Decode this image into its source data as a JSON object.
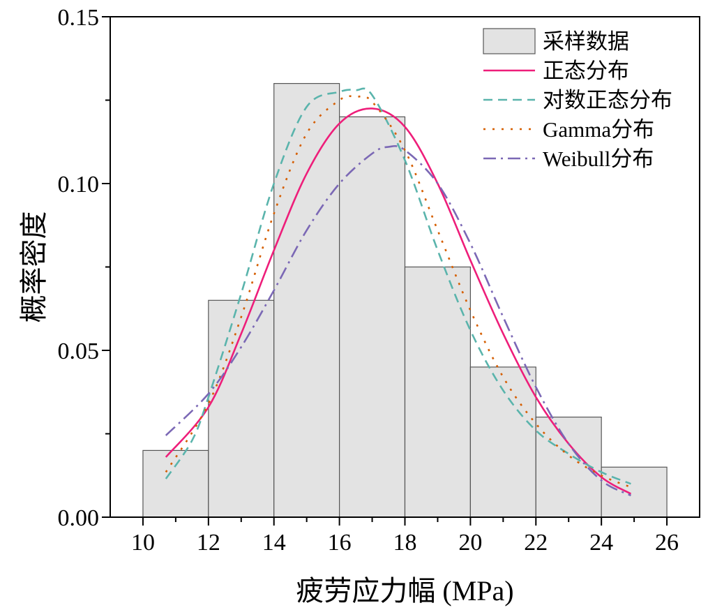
{
  "chart_data": {
    "type": "bar",
    "title": "",
    "xlabel": "疲劳应力幅 (MPa)",
    "ylabel": "概率密度",
    "xlim": [
      9,
      27
    ],
    "ylim": [
      0,
      0.15
    ],
    "x_ticks": [
      10,
      12,
      14,
      16,
      18,
      20,
      22,
      24,
      26
    ],
    "x_tick_labels": [
      "10",
      "12",
      "14",
      "16",
      "18",
      "20",
      "22",
      "24",
      "26"
    ],
    "y_ticks": [
      0,
      0.05,
      0.1,
      0.15
    ],
    "y_tick_labels": [
      "0.00",
      "0.05",
      "0.10",
      "0.15"
    ],
    "legend_position": "top-right",
    "histogram": {
      "name": "采样数据",
      "color": "#e3e3e3",
      "edge_color": "#555555",
      "bins": [
        {
          "x0": 10,
          "x1": 12,
          "value": 0.02
        },
        {
          "x0": 12,
          "x1": 14,
          "value": 0.065
        },
        {
          "x0": 14,
          "x1": 16,
          "value": 0.13
        },
        {
          "x0": 16,
          "x1": 18,
          "value": 0.12
        },
        {
          "x0": 18,
          "x1": 20,
          "value": 0.075
        },
        {
          "x0": 20,
          "x1": 22,
          "value": 0.045
        },
        {
          "x0": 22,
          "x1": 24,
          "value": 0.03
        },
        {
          "x0": 24,
          "x1": 26,
          "value": 0.015
        }
      ]
    },
    "series": [
      {
        "name": "正态分布",
        "color": "#ee1e7a",
        "dash": "solid",
        "x": [
          10.7,
          12,
          13,
          14,
          15,
          16,
          17,
          18,
          19,
          20,
          21,
          22,
          23,
          24,
          24.9
        ],
        "values": [
          0.018,
          0.033,
          0.055,
          0.08,
          0.103,
          0.118,
          0.1225,
          0.117,
          0.1,
          0.077,
          0.055,
          0.036,
          0.022,
          0.012,
          0.007
        ]
      },
      {
        "name": "对数正态分布",
        "color": "#5ab4ac",
        "dash": "dashed",
        "x": [
          10.7,
          11.5,
          12,
          13,
          14,
          15,
          16,
          16.5,
          17,
          18,
          19,
          20,
          21,
          22,
          23,
          24,
          24.9
        ],
        "values": [
          0.0115,
          0.023,
          0.036,
          0.067,
          0.1,
          0.123,
          0.1275,
          0.128,
          0.1265,
          0.107,
          0.08,
          0.056,
          0.038,
          0.026,
          0.019,
          0.0135,
          0.01
        ]
      },
      {
        "name": "Gamma分布",
        "color": "#d55e00",
        "dash": "dotted",
        "x": [
          10.7,
          12,
          13,
          14,
          15,
          16,
          16.5,
          17,
          18,
          19,
          20,
          21,
          22,
          23,
          24,
          24.9
        ],
        "values": [
          0.0135,
          0.034,
          0.06,
          0.091,
          0.115,
          0.125,
          0.126,
          0.1245,
          0.11,
          0.086,
          0.062,
          0.042,
          0.028,
          0.0185,
          0.0125,
          0.009
        ]
      },
      {
        "name": "Weibull分布",
        "color": "#7b68b5",
        "dash": "dashdot",
        "x": [
          10.7,
          12,
          13,
          14,
          15,
          16,
          17,
          17.5,
          18,
          19,
          20,
          21,
          22,
          23,
          24,
          24.9
        ],
        "values": [
          0.0245,
          0.037,
          0.051,
          0.068,
          0.086,
          0.1,
          0.109,
          0.111,
          0.11,
          0.1,
          0.082,
          0.06,
          0.039,
          0.022,
          0.011,
          0.0065
        ]
      }
    ]
  }
}
